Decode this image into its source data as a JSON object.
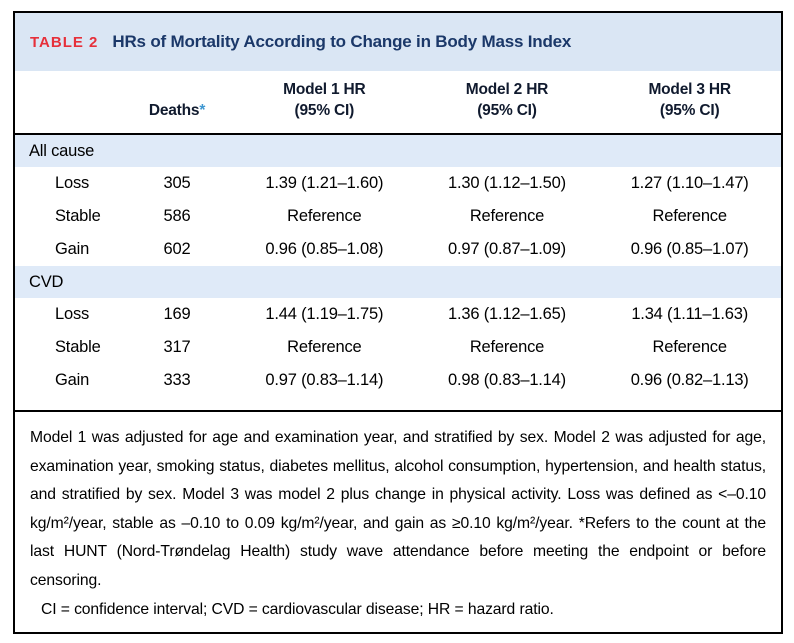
{
  "table": {
    "label": "TABLE 2",
    "title": "HRs of Mortality According to Change in Body Mass Index",
    "columns": {
      "deaths": "Deaths",
      "deaths_note_symbol": "*",
      "model1": {
        "line1": "Model 1 HR",
        "line2": "(95% CI)"
      },
      "model2": {
        "line1": "Model 2 HR",
        "line2": "(95% CI)"
      },
      "model3": {
        "line1": "Model 3 HR",
        "line2": "(95% CI)"
      }
    },
    "sections": [
      {
        "name": "All cause",
        "rows": [
          {
            "label": "Loss",
            "deaths": "305",
            "model1": "1.39 (1.21–1.60)",
            "model2": "1.30 (1.12–1.50)",
            "model3": "1.27 (1.10–1.47)"
          },
          {
            "label": "Stable",
            "deaths": "586",
            "model1": "Reference",
            "model2": "Reference",
            "model3": "Reference"
          },
          {
            "label": "Gain",
            "deaths": "602",
            "model1": "0.96 (0.85–1.08)",
            "model2": "0.97 (0.87–1.09)",
            "model3": "0.96 (0.85–1.07)"
          }
        ]
      },
      {
        "name": "CVD",
        "rows": [
          {
            "label": "Loss",
            "deaths": "169",
            "model1": "1.44 (1.19–1.75)",
            "model2": "1.36 (1.12–1.65)",
            "model3": "1.34 (1.11–1.63)"
          },
          {
            "label": "Stable",
            "deaths": "317",
            "model1": "Reference",
            "model2": "Reference",
            "model3": "Reference"
          },
          {
            "label": "Gain",
            "deaths": "333",
            "model1": "0.97 (0.83–1.14)",
            "model2": "0.98 (0.83–1.14)",
            "model3": "0.96 (0.82–1.13)"
          }
        ]
      }
    ],
    "footnote": "Model 1 was adjusted for age and examination year, and stratified by sex. Model 2 was adjusted for age, examination year, smoking status, diabetes mellitus, alcohol consumption, hypertension, and health status, and stratified by sex. Model 3 was model 2 plus change in physical activity. Loss was defined as <–0.10 kg/m²/year, stable as –0.10 to 0.09 kg/m²/year, and gain as ≥0.10 kg/m²/year. *Refers to the count at the last HUNT (Nord-Trøndelag Health) study wave attendance before meeting the endpoint or before censoring.",
    "abbreviations": "CI = confidence interval; CVD = cardiovascular disease; HR = hazard ratio."
  },
  "colors": {
    "title_band_bg": "#dae6f4",
    "section_band_bg": "#dfeaf8",
    "table_label_red": "#e6303a",
    "title_navy": "#1b3869",
    "asterisk_blue": "#3e97d1",
    "border_black": "#000000"
  }
}
